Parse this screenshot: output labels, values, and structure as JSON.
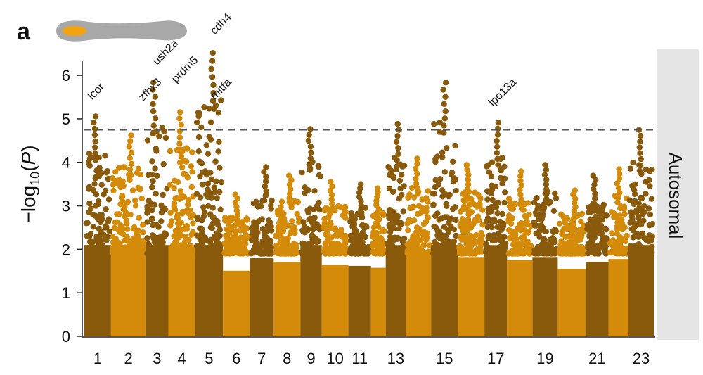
{
  "panel_letter": "a",
  "strip_label": "Autosomal",
  "colors": {
    "dark": "#8a5a0c",
    "light": "#d58b0a",
    "fish_body": "#a8a8a8",
    "fish_highlight": "#f2a30f",
    "strip": "#e5e5e5",
    "threshold": "#555555"
  },
  "chart_data": {
    "type": "scatter",
    "subtype": "manhattan",
    "title": "",
    "xlabel": "",
    "ylabel": "−log10(P)",
    "ylim": [
      0,
      6.6
    ],
    "yticks": [
      0,
      1,
      2,
      3,
      4,
      5,
      6
    ],
    "grid": false,
    "threshold": 4.75,
    "chromosomes": [
      {
        "chr": "1",
        "size": 1.0,
        "max": 5.2
      },
      {
        "chr": "2",
        "size": 1.3,
        "max": 4.75
      },
      {
        "chr": "3",
        "size": 0.85,
        "max": 6.0
      },
      {
        "chr": "4",
        "size": 1.0,
        "max": 5.3
      },
      {
        "chr": "5",
        "size": 1.05,
        "max": 6.7
      },
      {
        "chr": "6",
        "size": 1.0,
        "max": 3.35
      },
      {
        "chr": "7",
        "size": 0.9,
        "max": 4.0
      },
      {
        "chr": "8",
        "size": 1.0,
        "max": 3.8
      },
      {
        "chr": "9",
        "size": 0.8,
        "max": 4.9
      },
      {
        "chr": "10",
        "size": 1.0,
        "max": 3.65
      },
      {
        "chr": "11",
        "size": 0.85,
        "max": 3.6
      },
      {
        "chr": "12",
        "size": 0.55,
        "max": 3.5
      },
      {
        "chr": "13",
        "size": 0.75,
        "max": 5.02
      },
      {
        "chr": "14",
        "size": 0.95,
        "max": 4.2
      },
      {
        "chr": "15",
        "size": 1.0,
        "max": 6.0
      },
      {
        "chr": "16",
        "size": 1.0,
        "max": 4.05
      },
      {
        "chr": "17",
        "size": 0.85,
        "max": 5.05
      },
      {
        "chr": "18",
        "size": 0.95,
        "max": 3.9
      },
      {
        "chr": "19",
        "size": 0.95,
        "max": 4.05
      },
      {
        "chr": "20",
        "size": 1.05,
        "max": 3.45
      },
      {
        "chr": "21",
        "size": 0.85,
        "max": 3.8
      },
      {
        "chr": "22",
        "size": 0.75,
        "max": 3.95
      },
      {
        "chr": "23",
        "size": 0.95,
        "max": 4.88
      }
    ],
    "xtick_labels": [
      "1",
      "2",
      "3",
      "4",
      "5",
      "6",
      "7",
      "8",
      "9",
      "10",
      "11",
      "13",
      "15",
      "17",
      "19",
      "21",
      "23"
    ],
    "annotations": [
      {
        "gene": "lcor",
        "chr": "1",
        "p": 5.2
      },
      {
        "gene": "zfhx3",
        "chr": "3",
        "p": 4.75
      },
      {
        "gene": "ush2a",
        "chr": "3",
        "p": 6.0
      },
      {
        "gene": "prdm5",
        "chr": "4",
        "p": 5.3
      },
      {
        "gene": "cdh4",
        "chr": "5",
        "p": 6.7
      },
      {
        "gene": "mitfa",
        "chr": "5",
        "p": 5.3
      },
      {
        "gene": "lpo13a",
        "chr": "17",
        "p": 5.05
      }
    ]
  }
}
